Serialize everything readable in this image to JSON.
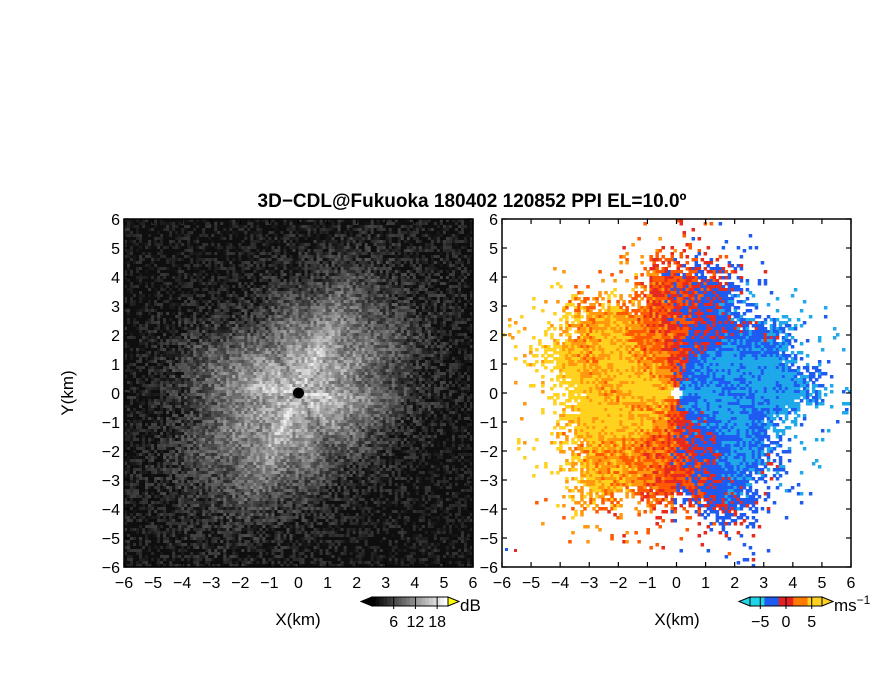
{
  "chart_data": {
    "title": "3D−CDL@Fukuoka 180402 120852 PPI EL=10.0º",
    "panels": [
      {
        "type": "heatmap",
        "field": "backscatter intensity",
        "xlabel": "X(km)",
        "ylabel": "Y(km)",
        "xlim": [
          -6,
          6
        ],
        "ylim": [
          -6,
          6
        ],
        "xticks": [
          "−6",
          "−5",
          "−4",
          "−3",
          "−2",
          "−1",
          "0",
          "1",
          "2",
          "3",
          "4",
          "5",
          "6"
        ],
        "yticks": [
          "6",
          "5",
          "4",
          "3",
          "2",
          "1",
          "0",
          "−1",
          "−2",
          "−3",
          "−4",
          "−5",
          "−6"
        ],
        "center_marker": {
          "x": 0,
          "y": 0
        },
        "colorbar": {
          "unit": "dB",
          "ticks": [
            "6",
            "12",
            "18"
          ],
          "range": [
            0,
            21
          ],
          "colors": [
            "#000000",
            "#ffffff"
          ]
        }
      },
      {
        "type": "heatmap",
        "field": "radial velocity",
        "xlabel": "X(km)",
        "xlim": [
          -6,
          6
        ],
        "ylim": [
          -6,
          6
        ],
        "xticks": [
          "−6",
          "−5",
          "−4",
          "−3",
          "−2",
          "−1",
          "0",
          "1",
          "2",
          "3",
          "4",
          "5",
          "6"
        ],
        "yticks": [
          "6",
          "5",
          "4",
          "3",
          "2",
          "1",
          "0",
          "−1",
          "−2",
          "−3",
          "−4",
          "−5",
          "−6"
        ],
        "data_extent_km": 4.3,
        "west_sector": "positive (orange/red)",
        "east_sector": "negative (blue)",
        "colorbar": {
          "unit": "ms",
          "unit_exponent": "−1",
          "ticks": [
            "−5",
            "0",
            "5"
          ],
          "range": [
            -7,
            7
          ],
          "colors": [
            "#1fd4e6",
            "#1f5bf0",
            "#e61f1f",
            "#ff7a00",
            "#ffd21f"
          ]
        }
      }
    ]
  }
}
